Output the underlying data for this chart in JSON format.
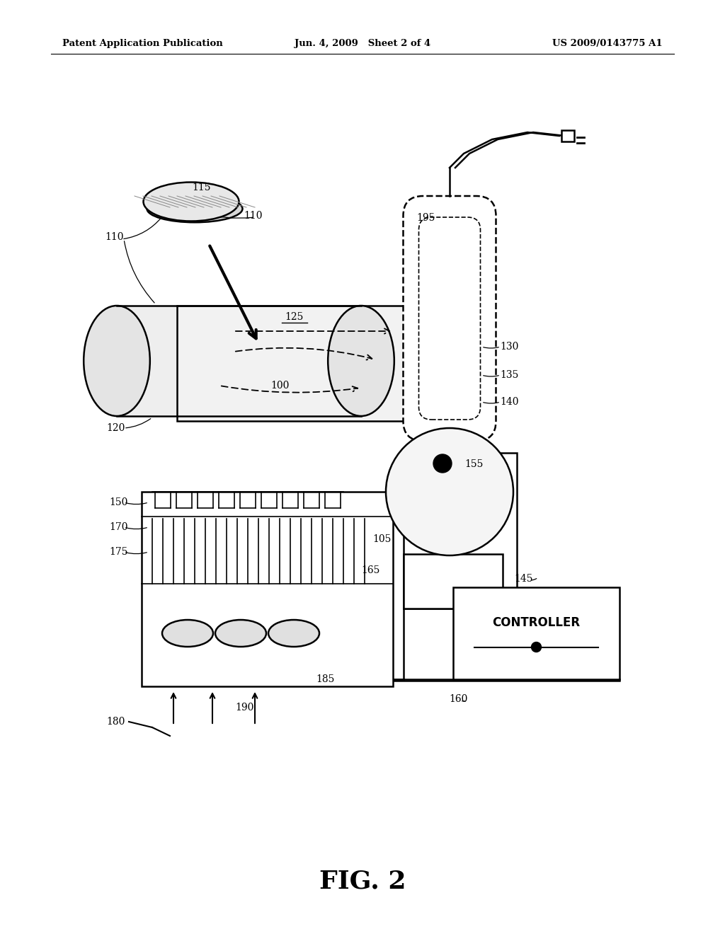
{
  "bg_color": "#ffffff",
  "header_left": "Patent Application Publication",
  "header_mid": "Jun. 4, 2009   Sheet 2 of 4",
  "header_right": "US 2009/0143775 A1",
  "fig_label": "FIG. 2"
}
